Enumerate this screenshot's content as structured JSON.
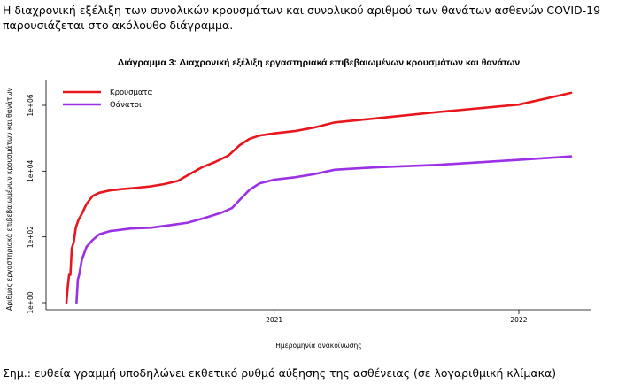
{
  "intro_text": "Η διαχρονική εξέλιξη των συνολικών κρουσμάτων και συνολικού αριθμού των θανάτων ασθενών COVID-19 παρουσιάζεται στο ακόλουθο διάγραμμα.",
  "footnote": "Σημ.: ευθεία γραμμή υποδηλώνει εκθετικό ρυθμό αύξησης της ασθένειας (σε λογαριθμική κλίμακα)",
  "chart_data": {
    "type": "line",
    "title": "Διάγραμμα 3: Διαχρονική εξέλιξη εργαστηριακά επιβεβαιωμένων κρουσμάτων και θανάτων",
    "xlabel": "Ημερομηνία ανακοίνωσης",
    "ylabel": "Αριθμός εργαστηριακά επιβεβαιωμένων κρουσμάτων και θανάτων",
    "y_scale": "log",
    "ylim": [
      1,
      3000000
    ],
    "xlim": [
      "2020-02-10",
      "2022-03-25"
    ],
    "x_ticks": [
      {
        "date": "2021-01-01",
        "label": "2021"
      },
      {
        "date": "2022-01-01",
        "label": "2022"
      }
    ],
    "y_ticks": [
      {
        "value": 1,
        "label": "1e+00"
      },
      {
        "value": 100,
        "label": "1e+02"
      },
      {
        "value": 10000,
        "label": "1e+04"
      },
      {
        "value": 1000000,
        "label": "1e+06"
      }
    ],
    "grid": false,
    "legend_position": "top-left",
    "series": [
      {
        "name": "Κρούσματα",
        "color": "#e8161c",
        "points": [
          [
            "2020-02-26",
            1
          ],
          [
            "2020-02-28",
            3
          ],
          [
            "2020-03-01",
            7
          ],
          [
            "2020-03-03",
            7
          ],
          [
            "2020-03-05",
            45
          ],
          [
            "2020-03-08",
            70
          ],
          [
            "2020-03-11",
            190
          ],
          [
            "2020-03-15",
            330
          ],
          [
            "2020-03-20",
            500
          ],
          [
            "2020-03-27",
            1000
          ],
          [
            "2020-04-05",
            1750
          ],
          [
            "2020-04-15",
            2200
          ],
          [
            "2020-05-01",
            2600
          ],
          [
            "2020-05-20",
            2850
          ],
          [
            "2020-06-10",
            3100
          ],
          [
            "2020-07-01",
            3450
          ],
          [
            "2020-07-20",
            4000
          ],
          [
            "2020-08-10",
            5000
          ],
          [
            "2020-08-25",
            7500
          ],
          [
            "2020-09-15",
            13000
          ],
          [
            "2020-10-05",
            19000
          ],
          [
            "2020-10-25",
            30000
          ],
          [
            "2020-11-10",
            60000
          ],
          [
            "2020-11-25",
            95000
          ],
          [
            "2020-12-10",
            120000
          ],
          [
            "2021-01-01",
            140000
          ],
          [
            "2021-02-01",
            165000
          ],
          [
            "2021-03-01",
            210000
          ],
          [
            "2021-04-01",
            300000
          ],
          [
            "2021-06-01",
            400000
          ],
          [
            "2021-09-01",
            620000
          ],
          [
            "2022-01-01",
            1050000
          ],
          [
            "2022-03-20",
            2400000
          ]
        ]
      },
      {
        "name": "Θάνατοι",
        "color": "#9b30e6",
        "points": [
          [
            "2020-03-12",
            1
          ],
          [
            "2020-03-14",
            5
          ],
          [
            "2020-03-16",
            7
          ],
          [
            "2020-03-20",
            20
          ],
          [
            "2020-03-27",
            50
          ],
          [
            "2020-04-05",
            80
          ],
          [
            "2020-04-15",
            120
          ],
          [
            "2020-05-01",
            150
          ],
          [
            "2020-06-01",
            180
          ],
          [
            "2020-07-01",
            190
          ],
          [
            "2020-08-01",
            230
          ],
          [
            "2020-08-25",
            270
          ],
          [
            "2020-09-20",
            380
          ],
          [
            "2020-10-15",
            550
          ],
          [
            "2020-10-30",
            750
          ],
          [
            "2020-11-10",
            1300
          ],
          [
            "2020-11-25",
            2700
          ],
          [
            "2020-12-10",
            4200
          ],
          [
            "2021-01-01",
            5500
          ],
          [
            "2021-02-01",
            6500
          ],
          [
            "2021-03-01",
            8000
          ],
          [
            "2021-04-01",
            11000
          ],
          [
            "2021-06-01",
            13000
          ],
          [
            "2021-09-01",
            15500
          ],
          [
            "2022-01-01",
            22000
          ],
          [
            "2022-03-20",
            28000
          ]
        ]
      }
    ]
  }
}
